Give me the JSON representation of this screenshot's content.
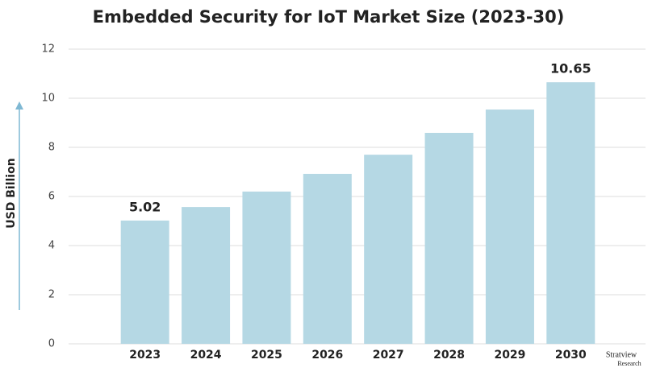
{
  "chart_data": {
    "type": "bar",
    "title": "Embedded Security for IoT Market Size (2023-30)",
    "y_label": "USD Billion",
    "categories": [
      "2023",
      "2024",
      "2025",
      "2026",
      "2027",
      "2028",
      "2029",
      "2030"
    ],
    "values": [
      5.02,
      5.57,
      6.2,
      6.92,
      7.7,
      8.59,
      9.54,
      10.65
    ],
    "value_labels": [
      "5.02",
      null,
      null,
      null,
      null,
      null,
      null,
      "10.65"
    ],
    "color": "#b5d8e4",
    "ylim": [
      0,
      12
    ],
    "yticks": [
      0,
      2,
      4,
      6,
      8,
      10,
      12
    ],
    "grid": true,
    "logo": {
      "name": "Stratview",
      "sub": "Research"
    }
  }
}
